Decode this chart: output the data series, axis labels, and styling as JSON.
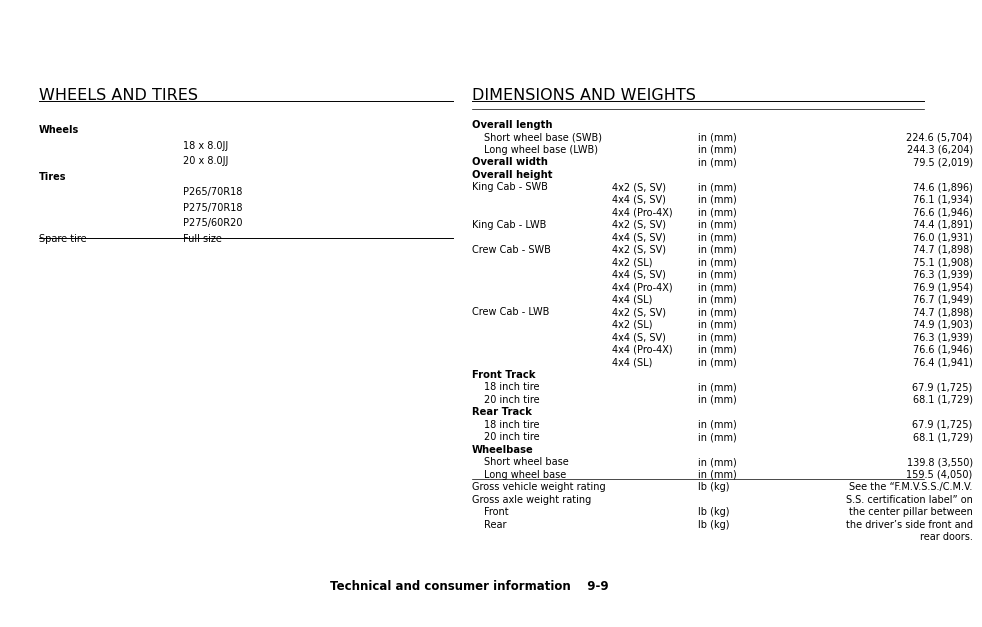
{
  "bg_color": "#ffffff",
  "left_title": "WHEELS AND TIRES",
  "right_title": "DIMENSIONS AND WEIGHTS",
  "footer_left": "Technical and consumer information",
  "footer_right": "9-9",
  "left_section": {
    "rows": [
      {
        "label": "Wheels",
        "col2": "",
        "bold_label": true
      },
      {
        "label": "",
        "col2": "18 x 8.0JJ",
        "bold_label": false
      },
      {
        "label": "",
        "col2": "20 x 8.0JJ",
        "bold_label": false
      },
      {
        "label": "Tires",
        "col2": "",
        "bold_label": true
      },
      {
        "label": "",
        "col2": "P265/70R18",
        "bold_label": false
      },
      {
        "label": "",
        "col2": "P275/70R18",
        "bold_label": false
      },
      {
        "label": "",
        "col2": "P275/60R20",
        "bold_label": false
      },
      {
        "label": "Spare tire",
        "col2": "Full size",
        "bold_label": false,
        "hr_after": true
      }
    ]
  },
  "right_section": {
    "rows": [
      {
        "label": "Overall length",
        "col2": "",
        "col3": "",
        "col4": "",
        "bold": true,
        "indent": 0
      },
      {
        "label": "Short wheel base (SWB)",
        "col2": "",
        "col3": "in (mm)",
        "col4": "224.6 (5,704)",
        "bold": false,
        "indent": 1
      },
      {
        "label": "Long wheel base (LWB)",
        "col2": "",
        "col3": "in (mm)",
        "col4": "244.3 (6,204)",
        "bold": false,
        "indent": 1
      },
      {
        "label": "Overall width",
        "col2": "",
        "col3": "in (mm)",
        "col4": "79.5 (2,019)",
        "bold": true,
        "indent": 0
      },
      {
        "label": "Overall height",
        "col2": "",
        "col3": "",
        "col4": "",
        "bold": true,
        "indent": 0
      },
      {
        "label": "King Cab - SWB",
        "col2": "4x2 (S, SV)",
        "col3": "in (mm)",
        "col4": "74.6 (1,896)",
        "bold": false,
        "indent": 0
      },
      {
        "label": "",
        "col2": "4x4 (S, SV)",
        "col3": "in (mm)",
        "col4": "76.1 (1,934)",
        "bold": false,
        "indent": 0
      },
      {
        "label": "",
        "col2": "4x4 (Pro-4X)",
        "col3": "in (mm)",
        "col4": "76.6 (1,946)",
        "bold": false,
        "indent": 0
      },
      {
        "label": "King Cab - LWB",
        "col2": "4x2 (S, SV)",
        "col3": "in (mm)",
        "col4": "74.4 (1,891)",
        "bold": false,
        "indent": 0
      },
      {
        "label": "",
        "col2": "4x4 (S, SV)",
        "col3": "in (mm)",
        "col4": "76.0 (1,931)",
        "bold": false,
        "indent": 0
      },
      {
        "label": "Crew Cab - SWB",
        "col2": "4x2 (S, SV)",
        "col3": "in (mm)",
        "col4": "74.7 (1,898)",
        "bold": false,
        "indent": 0
      },
      {
        "label": "",
        "col2": "4x2 (SL)",
        "col3": "in (mm)",
        "col4": "75.1 (1,908)",
        "bold": false,
        "indent": 0
      },
      {
        "label": "",
        "col2": "4x4 (S, SV)",
        "col3": "in (mm)",
        "col4": "76.3 (1,939)",
        "bold": false,
        "indent": 0
      },
      {
        "label": "",
        "col2": "4x4 (Pro-4X)",
        "col3": "in (mm)",
        "col4": "76.9 (1,954)",
        "bold": false,
        "indent": 0
      },
      {
        "label": "",
        "col2": "4x4 (SL)",
        "col3": "in (mm)",
        "col4": "76.7 (1,949)",
        "bold": false,
        "indent": 0
      },
      {
        "label": "Crew Cab - LWB",
        "col2": "4x2 (S, SV)",
        "col3": "in (mm)",
        "col4": "74.7 (1,898)",
        "bold": false,
        "indent": 0
      },
      {
        "label": "",
        "col2": "4x2 (SL)",
        "col3": "in (mm)",
        "col4": "74.9 (1,903)",
        "bold": false,
        "indent": 0
      },
      {
        "label": "",
        "col2": "4x4 (S, SV)",
        "col3": "in (mm)",
        "col4": "76.3 (1,939)",
        "bold": false,
        "indent": 0
      },
      {
        "label": "",
        "col2": "4x4 (Pro-4X)",
        "col3": "in (mm)",
        "col4": "76.6 (1,946)",
        "bold": false,
        "indent": 0
      },
      {
        "label": "",
        "col2": "4x4 (SL)",
        "col3": "in (mm)",
        "col4": "76.4 (1,941)",
        "bold": false,
        "indent": 0
      },
      {
        "label": "Front Track",
        "col2": "",
        "col3": "",
        "col4": "",
        "bold": true,
        "indent": 0
      },
      {
        "label": "18 inch tire",
        "col2": "",
        "col3": "in (mm)",
        "col4": "67.9 (1,725)",
        "bold": false,
        "indent": 1
      },
      {
        "label": "20 inch tire",
        "col2": "",
        "col3": "in (mm)",
        "col4": "68.1 (1,729)",
        "bold": false,
        "indent": 1
      },
      {
        "label": "Rear Track",
        "col2": "",
        "col3": "",
        "col4": "",
        "bold": true,
        "indent": 0
      },
      {
        "label": "18 inch tire",
        "col2": "",
        "col3": "in (mm)",
        "col4": "67.9 (1,725)",
        "bold": false,
        "indent": 1
      },
      {
        "label": "20 inch tire",
        "col2": "",
        "col3": "in (mm)",
        "col4": "68.1 (1,729)",
        "bold": false,
        "indent": 1
      },
      {
        "label": "Wheelbase",
        "col2": "",
        "col3": "",
        "col4": "",
        "bold": true,
        "indent": 0
      },
      {
        "label": "Short wheel base",
        "col2": "",
        "col3": "in (mm)",
        "col4": "139.8 (3,550)",
        "bold": false,
        "indent": 1
      },
      {
        "label": "Long wheel base",
        "col2": "",
        "col3": "in (mm)",
        "col4": "159.5 (4,050)",
        "bold": false,
        "indent": 1
      },
      {
        "label": "Gross vehicle weight rating",
        "col2": "",
        "col3": "lb (kg)",
        "col4": "",
        "bold": false,
        "indent": 0,
        "hr_before": true,
        "special": "See the \"F.M.V.S.S./C.M.V.\nS.S. certification label\" on\nthe center pillar between\nthe driver's side front and\nrear doors."
      },
      {
        "label": "Gross axle weight rating",
        "col2": "",
        "col3": "",
        "col4": "",
        "bold": false,
        "indent": 0
      },
      {
        "label": "Front",
        "col2": "",
        "col3": "lb (kg)",
        "col4": "",
        "bold": false,
        "indent": 1
      },
      {
        "label": "Rear",
        "col2": "",
        "col3": "lb (kg)",
        "col4": "",
        "bold": false,
        "indent": 1
      }
    ]
  }
}
